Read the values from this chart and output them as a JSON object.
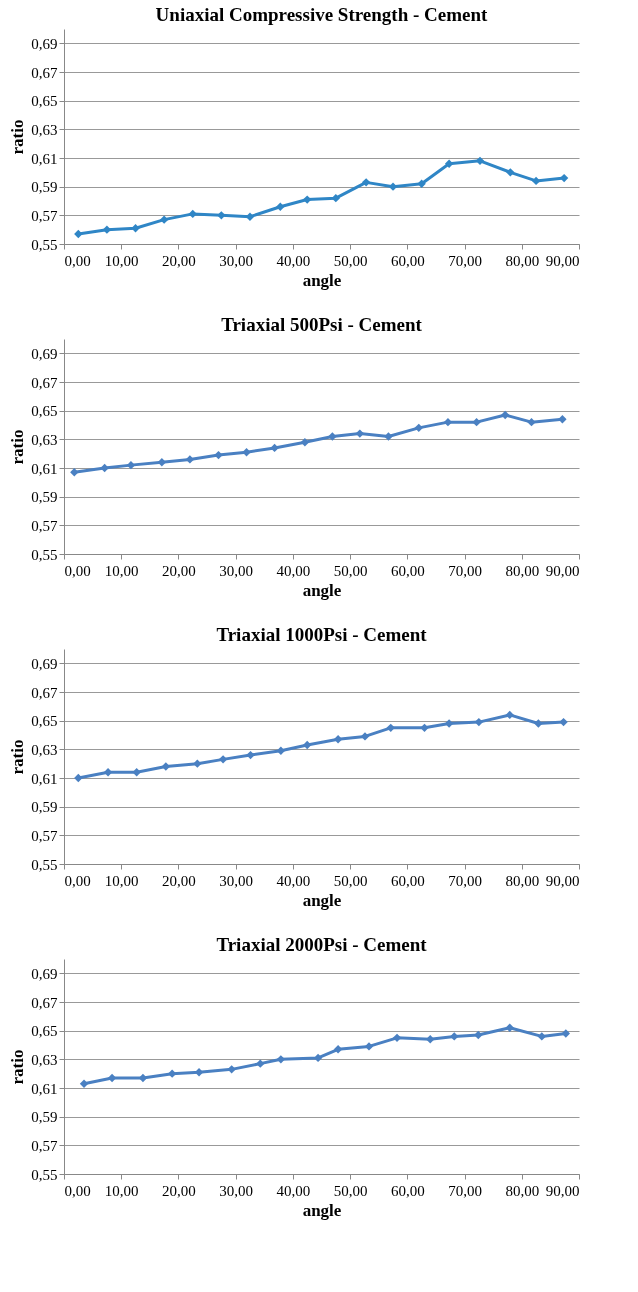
{
  "chart_data": [
    {
      "type": "line",
      "title": "Uniaxial Compressive Strength - Cement",
      "xlabel": "angle",
      "ylabel": "ratio",
      "x": [
        2.5,
        7.5,
        12.5,
        17.5,
        22.5,
        27.5,
        32.5,
        37.8,
        42.5,
        47.5,
        52.8,
        57.5,
        62.5,
        67.3,
        72.7,
        78.0,
        82.5,
        87.4
      ],
      "series": [
        {
          "color": "#2f86c6",
          "values": [
            0.557,
            0.56,
            0.561,
            0.567,
            0.571,
            0.57,
            0.569,
            0.576,
            0.581,
            0.582,
            0.593,
            0.59,
            0.592,
            0.606,
            0.608,
            0.6,
            0.594,
            0.596
          ]
        }
      ],
      "xlim": [
        0,
        90
      ],
      "ylim": [
        0.55,
        0.7
      ],
      "xticks": [
        {
          "value": 0,
          "label": "0,00"
        },
        {
          "value": 10,
          "label": "10,00"
        },
        {
          "value": 20,
          "label": "20,00"
        },
        {
          "value": 30,
          "label": "30,00"
        },
        {
          "value": 40,
          "label": "40,00"
        },
        {
          "value": 50,
          "label": "50,00"
        },
        {
          "value": 60,
          "label": "60,00"
        },
        {
          "value": 70,
          "label": "70,00"
        },
        {
          "value": 80,
          "label": "80,00"
        },
        {
          "value": 90,
          "label": "90,00"
        }
      ],
      "yticks": [
        {
          "value": 0.55,
          "label": "0,55"
        },
        {
          "value": 0.57,
          "label": "0,57"
        },
        {
          "value": 0.59,
          "label": "0,59"
        },
        {
          "value": 0.61,
          "label": "0,61"
        },
        {
          "value": 0.63,
          "label": "0,63"
        },
        {
          "value": 0.65,
          "label": "0,65"
        },
        {
          "value": 0.67,
          "label": "0,67"
        },
        {
          "value": 0.69,
          "label": "0,69"
        }
      ],
      "grid": "y",
      "marker": "diamond",
      "line_style": "solid",
      "legend": false
    },
    {
      "type": "line",
      "title": "Triaxial 500Psi - Cement",
      "xlabel": "angle",
      "ylabel": "ratio",
      "x": [
        1.8,
        7.1,
        11.7,
        17.1,
        22.0,
        27.0,
        31.9,
        36.8,
        42.1,
        46.9,
        51.7,
        56.7,
        62.0,
        67.1,
        72.1,
        77.1,
        81.7,
        87.1
      ],
      "series": [
        {
          "color": "#4a80c2",
          "values": [
            0.607,
            0.61,
            0.612,
            0.614,
            0.616,
            0.619,
            0.621,
            0.624,
            0.628,
            0.632,
            0.634,
            0.632,
            0.638,
            0.642,
            0.642,
            0.647,
            0.642,
            0.644
          ]
        }
      ],
      "xlim": [
        0,
        90
      ],
      "ylim": [
        0.55,
        0.7
      ],
      "xticks": [
        {
          "value": 0,
          "label": "0,00"
        },
        {
          "value": 10,
          "label": "10,00"
        },
        {
          "value": 20,
          "label": "20,00"
        },
        {
          "value": 30,
          "label": "30,00"
        },
        {
          "value": 40,
          "label": "40,00"
        },
        {
          "value": 50,
          "label": "50,00"
        },
        {
          "value": 60,
          "label": "60,00"
        },
        {
          "value": 70,
          "label": "70,00"
        },
        {
          "value": 80,
          "label": "80,00"
        },
        {
          "value": 90,
          "label": "90,00"
        }
      ],
      "yticks": [
        {
          "value": 0.55,
          "label": "0,55"
        },
        {
          "value": 0.57,
          "label": "0,57"
        },
        {
          "value": 0.59,
          "label": "0,59"
        },
        {
          "value": 0.61,
          "label": "0,61"
        },
        {
          "value": 0.63,
          "label": "0,63"
        },
        {
          "value": 0.65,
          "label": "0,65"
        },
        {
          "value": 0.67,
          "label": "0,67"
        },
        {
          "value": 0.69,
          "label": "0,69"
        }
      ],
      "grid": "y",
      "marker": "diamond",
      "line_style": "solid",
      "legend": false
    },
    {
      "type": "line",
      "title": "Triaxial 1000Psi - Cement",
      "xlabel": "angle",
      "ylabel": "ratio",
      "x": [
        2.5,
        7.7,
        12.7,
        17.8,
        23.3,
        27.8,
        32.6,
        37.9,
        42.5,
        47.9,
        52.6,
        57.1,
        63.0,
        67.3,
        72.5,
        77.9,
        82.9,
        87.3
      ],
      "series": [
        {
          "color": "#4a80c2",
          "values": [
            0.61,
            0.614,
            0.614,
            0.618,
            0.62,
            0.623,
            0.626,
            0.629,
            0.633,
            0.637,
            0.639,
            0.645,
            0.645,
            0.648,
            0.649,
            0.654,
            0.648,
            0.649
          ]
        }
      ],
      "xlim": [
        0,
        90
      ],
      "ylim": [
        0.55,
        0.7
      ],
      "xticks": [
        {
          "value": 0,
          "label": "0,00"
        },
        {
          "value": 10,
          "label": "10,00"
        },
        {
          "value": 20,
          "label": "20,00"
        },
        {
          "value": 30,
          "label": "30,00"
        },
        {
          "value": 40,
          "label": "40,00"
        },
        {
          "value": 50,
          "label": "50,00"
        },
        {
          "value": 60,
          "label": "60,00"
        },
        {
          "value": 70,
          "label": "70,00"
        },
        {
          "value": 80,
          "label": "80,00"
        },
        {
          "value": 90,
          "label": "90,00"
        }
      ],
      "yticks": [
        {
          "value": 0.55,
          "label": "0,55"
        },
        {
          "value": 0.57,
          "label": "0,57"
        },
        {
          "value": 0.59,
          "label": "0,59"
        },
        {
          "value": 0.61,
          "label": "0,61"
        },
        {
          "value": 0.63,
          "label": "0,63"
        },
        {
          "value": 0.65,
          "label": "0,65"
        },
        {
          "value": 0.67,
          "label": "0,67"
        },
        {
          "value": 0.69,
          "label": "0,69"
        }
      ],
      "grid": "y",
      "marker": "diamond",
      "line_style": "solid",
      "legend": false
    },
    {
      "type": "line",
      "title": "Triaxial 2000Psi - Cement",
      "xlabel": "angle",
      "ylabel": "ratio",
      "x": [
        3.5,
        8.4,
        13.8,
        18.9,
        23.6,
        29.3,
        34.3,
        37.9,
        44.4,
        47.9,
        53.3,
        58.2,
        64.0,
        68.2,
        72.4,
        77.9,
        83.5,
        87.7
      ],
      "series": [
        {
          "color": "#4a80c2",
          "values": [
            0.613,
            0.617,
            0.617,
            0.62,
            0.621,
            0.623,
            0.627,
            0.63,
            0.631,
            0.637,
            0.639,
            0.645,
            0.644,
            0.646,
            0.647,
            0.652,
            0.646,
            0.648
          ]
        }
      ],
      "xlim": [
        0,
        90
      ],
      "ylim": [
        0.55,
        0.7
      ],
      "xticks": [
        {
          "value": 0,
          "label": "0,00"
        },
        {
          "value": 10,
          "label": "10,00"
        },
        {
          "value": 20,
          "label": "20,00"
        },
        {
          "value": 30,
          "label": "30,00"
        },
        {
          "value": 40,
          "label": "40,00"
        },
        {
          "value": 50,
          "label": "50,00"
        },
        {
          "value": 60,
          "label": "60,00"
        },
        {
          "value": 70,
          "label": "70,00"
        },
        {
          "value": 80,
          "label": "80,00"
        },
        {
          "value": 90,
          "label": "90,00"
        }
      ],
      "yticks": [
        {
          "value": 0.55,
          "label": "0,55"
        },
        {
          "value": 0.57,
          "label": "0,57"
        },
        {
          "value": 0.59,
          "label": "0,59"
        },
        {
          "value": 0.61,
          "label": "0,61"
        },
        {
          "value": 0.63,
          "label": "0,63"
        },
        {
          "value": 0.65,
          "label": "0,65"
        },
        {
          "value": 0.67,
          "label": "0,67"
        },
        {
          "value": 0.69,
          "label": "0,69"
        }
      ],
      "grid": "y",
      "marker": "diamond",
      "line_style": "solid",
      "legend": false
    }
  ]
}
